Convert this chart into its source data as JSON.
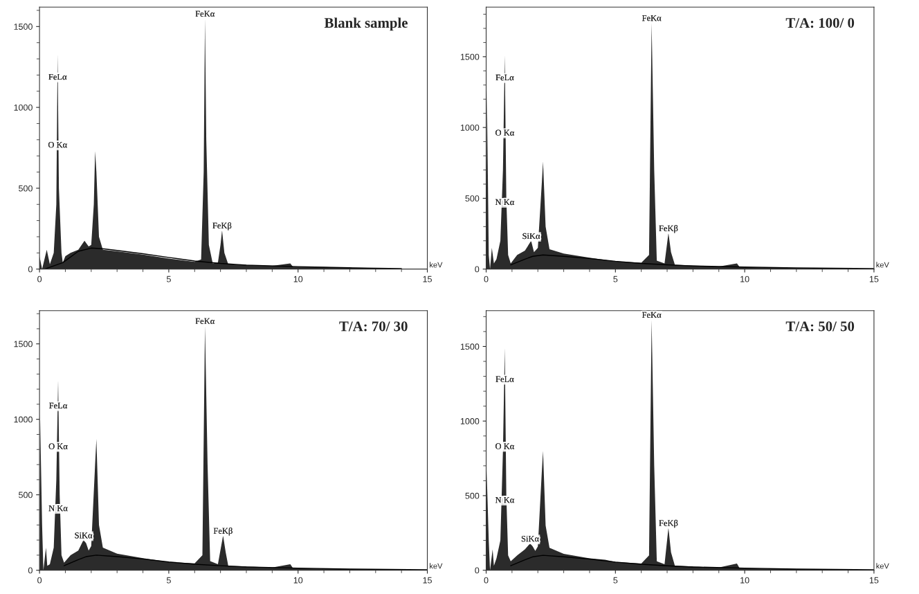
{
  "chart_data": [
    {
      "type": "area",
      "title": "Blank sample",
      "xlabel": "keV",
      "xlim": [
        0,
        15
      ],
      "xticks": [
        0,
        5,
        10,
        15
      ],
      "ylim": [
        0,
        1620
      ],
      "yticks": [
        0,
        500,
        1000,
        1500
      ],
      "grid": false,
      "legend": false,
      "series": [
        {
          "color": "#2b2b2b",
          "x": [
            0,
            0.1,
            0.28,
            0.4,
            0.55,
            0.65,
            0.7,
            0.75,
            0.85,
            0.9,
            1.0,
            1.2,
            1.5,
            1.74,
            1.9,
            2.0,
            2.1,
            2.15,
            2.2,
            2.3,
            2.45,
            3,
            4,
            5,
            6,
            6.25,
            6.35,
            6.4,
            6.45,
            6.55,
            6.7,
            6.9,
            7.0,
            7.06,
            7.15,
            7.3,
            8,
            9,
            9.7,
            9.8,
            11,
            13,
            14,
            15
          ],
          "values": [
            80,
            0,
            120,
            30,
            100,
            400,
            1330,
            500,
            100,
            40,
            80,
            100,
            120,
            175,
            140,
            150,
            400,
            730,
            600,
            200,
            120,
            110,
            90,
            65,
            45,
            60,
            600,
            1550,
            800,
            150,
            35,
            40,
            150,
            240,
            100,
            30,
            25,
            20,
            35,
            15,
            12,
            6,
            3,
            2
          ]
        },
        {
          "type": "line",
          "color": "#000000",
          "x": [
            0.2,
            0.9,
            1.5,
            2,
            2.5,
            3,
            4,
            5,
            6,
            7,
            8,
            10,
            12,
            14
          ],
          "values": [
            0,
            40,
            110,
            130,
            125,
            115,
            95,
            72,
            50,
            35,
            25,
            15,
            8,
            3
          ]
        }
      ],
      "annotations": [
        {
          "text": "FeKα",
          "x": 6.4,
          "y": 1550
        },
        {
          "text": "FeLα",
          "x": 0.7,
          "y": 1160
        },
        {
          "text": "O Kα",
          "x": 0.7,
          "y": 740
        },
        {
          "text": "FeKβ",
          "x": 7.06,
          "y": 240
        }
      ]
    },
    {
      "type": "area",
      "title": "T/A: 100/ 0",
      "xlabel": "keV",
      "xlim": [
        0,
        15
      ],
      "xticks": [
        0,
        5,
        10,
        15
      ],
      "ylim": [
        0,
        1850
      ],
      "yticks": [
        0,
        500,
        1000,
        1500
      ],
      "grid": false,
      "legend": false,
      "series": [
        {
          "color": "#2b2b2b",
          "x": [
            0,
            0.03,
            0.1,
            0.15,
            0.22,
            0.3,
            0.4,
            0.55,
            0.65,
            0.72,
            0.78,
            0.85,
            0.95,
            1.2,
            1.5,
            1.74,
            1.85,
            2.0,
            2.15,
            2.2,
            2.3,
            2.45,
            3,
            4,
            5,
            6,
            6.3,
            6.4,
            6.5,
            6.6,
            6.9,
            7.05,
            7.15,
            7.3,
            8,
            9,
            9.7,
            9.8,
            11,
            13,
            15
          ],
          "values": [
            0,
            1270,
            100,
            0,
            150,
            40,
            70,
            200,
            700,
            1510,
            500,
            100,
            40,
            100,
            130,
            200,
            120,
            150,
            600,
            760,
            300,
            140,
            110,
            80,
            55,
            45,
            100,
            1740,
            700,
            60,
            40,
            255,
            120,
            30,
            25,
            18,
            40,
            15,
            10,
            5,
            2
          ]
        },
        {
          "type": "line",
          "color": "#000000",
          "x": [
            0.95,
            1.5,
            1.8,
            2.2,
            3,
            4,
            5,
            6,
            7,
            8,
            10,
            12,
            15
          ],
          "values": [
            30,
            70,
            90,
            100,
            90,
            75,
            55,
            40,
            30,
            22,
            14,
            8,
            3
          ]
        }
      ],
      "annotations": [
        {
          "text": "FeKα",
          "x": 6.4,
          "y": 1740
        },
        {
          "text": "FeLα",
          "x": 0.72,
          "y": 1320
        },
        {
          "text": "O Kα",
          "x": 0.72,
          "y": 930
        },
        {
          "text": "N Kα",
          "x": 0.72,
          "y": 440
        },
        {
          "text": "SiKα",
          "x": 1.74,
          "y": 200
        },
        {
          "text": "FeKβ",
          "x": 7.05,
          "y": 255
        }
      ]
    },
    {
      "type": "area",
      "title": "T/A: 70/ 30",
      "xlabel": "keV",
      "xlim": [
        0,
        15
      ],
      "xticks": [
        0,
        5,
        10,
        15
      ],
      "ylim": [
        0,
        1720
      ],
      "yticks": [
        0,
        500,
        1000,
        1500
      ],
      "grid": false,
      "legend": false,
      "series": [
        {
          "color": "#2b2b2b",
          "x": [
            0,
            0.02,
            0.1,
            0.15,
            0.25,
            0.3,
            0.4,
            0.55,
            0.65,
            0.72,
            0.78,
            0.85,
            0.95,
            1.2,
            1.5,
            1.7,
            1.8,
            1.9,
            2.0,
            2.15,
            2.2,
            2.3,
            2.45,
            3,
            4,
            5,
            6,
            6.3,
            6.4,
            6.5,
            6.6,
            6.9,
            7.1,
            7.2,
            7.3,
            8,
            9,
            9.7,
            9.8,
            11,
            13,
            15
          ],
          "values": [
            0,
            1040,
            300,
            0,
            150,
            30,
            40,
            150,
            600,
            1260,
            500,
            100,
            50,
            100,
            130,
            200,
            180,
            130,
            160,
            700,
            870,
            300,
            150,
            110,
            80,
            55,
            45,
            100,
            1620,
            700,
            60,
            40,
            230,
            120,
            30,
            25,
            18,
            40,
            15,
            10,
            5,
            2
          ]
        },
        {
          "type": "line",
          "color": "#000000",
          "x": [
            0.95,
            1.5,
            1.8,
            2.2,
            3,
            4,
            5,
            6,
            7,
            8,
            10,
            12,
            15
          ],
          "values": [
            30,
            70,
            90,
            100,
            90,
            75,
            55,
            40,
            30,
            22,
            14,
            8,
            3
          ]
        }
      ],
      "annotations": [
        {
          "text": "FeKα",
          "x": 6.4,
          "y": 1620
        },
        {
          "text": "FeLα",
          "x": 0.72,
          "y": 1060
        },
        {
          "text": "O Kα",
          "x": 0.72,
          "y": 790
        },
        {
          "text": "N Kα",
          "x": 0.72,
          "y": 380
        },
        {
          "text": "SiKα",
          "x": 1.7,
          "y": 200
        },
        {
          "text": "FeKβ",
          "x": 7.1,
          "y": 230
        }
      ]
    },
    {
      "type": "area",
      "title": "T/A: 50/ 50",
      "xlabel": "keV",
      "xlim": [
        0,
        15
      ],
      "xticks": [
        0,
        5,
        10,
        15
      ],
      "ylim": [
        0,
        1740
      ],
      "yticks": [
        0,
        500,
        1000,
        1500
      ],
      "grid": false,
      "legend": false,
      "series": [
        {
          "color": "#2b2b2b",
          "x": [
            0,
            0.02,
            0.1,
            0.15,
            0.25,
            0.3,
            0.4,
            0.55,
            0.65,
            0.72,
            0.78,
            0.85,
            0.95,
            1.2,
            1.5,
            1.7,
            1.8,
            1.9,
            2.0,
            2.15,
            2.2,
            2.3,
            2.45,
            3,
            4,
            4.6,
            5,
            6,
            6.3,
            6.4,
            6.5,
            6.6,
            6.9,
            7.05,
            7.15,
            7.3,
            8,
            9,
            9.7,
            9.8,
            11,
            13,
            15
          ],
          "values": [
            0,
            670,
            200,
            0,
            140,
            30,
            80,
            200,
            800,
            1490,
            500,
            100,
            60,
            100,
            140,
            180,
            160,
            130,
            160,
            650,
            800,
            300,
            150,
            110,
            80,
            70,
            55,
            45,
            100,
            1680,
            700,
            60,
            40,
            285,
            120,
            30,
            25,
            18,
            45,
            15,
            10,
            5,
            2
          ]
        },
        {
          "type": "line",
          "color": "#000000",
          "x": [
            0.95,
            1.5,
            1.8,
            2.2,
            3,
            4,
            5,
            6,
            7,
            8,
            10,
            12,
            15
          ],
          "values": [
            30,
            70,
            90,
            100,
            90,
            75,
            55,
            40,
            30,
            22,
            14,
            8,
            3
          ]
        }
      ],
      "annotations": [
        {
          "text": "FeKα",
          "x": 6.4,
          "y": 1680
        },
        {
          "text": "FeLα",
          "x": 0.72,
          "y": 1250
        },
        {
          "text": "O Kα",
          "x": 0.72,
          "y": 800
        },
        {
          "text": "N Kα",
          "x": 0.72,
          "y": 440
        },
        {
          "text": "SiKα",
          "x": 1.7,
          "y": 180
        },
        {
          "text": "FeKβ",
          "x": 7.05,
          "y": 285
        }
      ]
    }
  ]
}
